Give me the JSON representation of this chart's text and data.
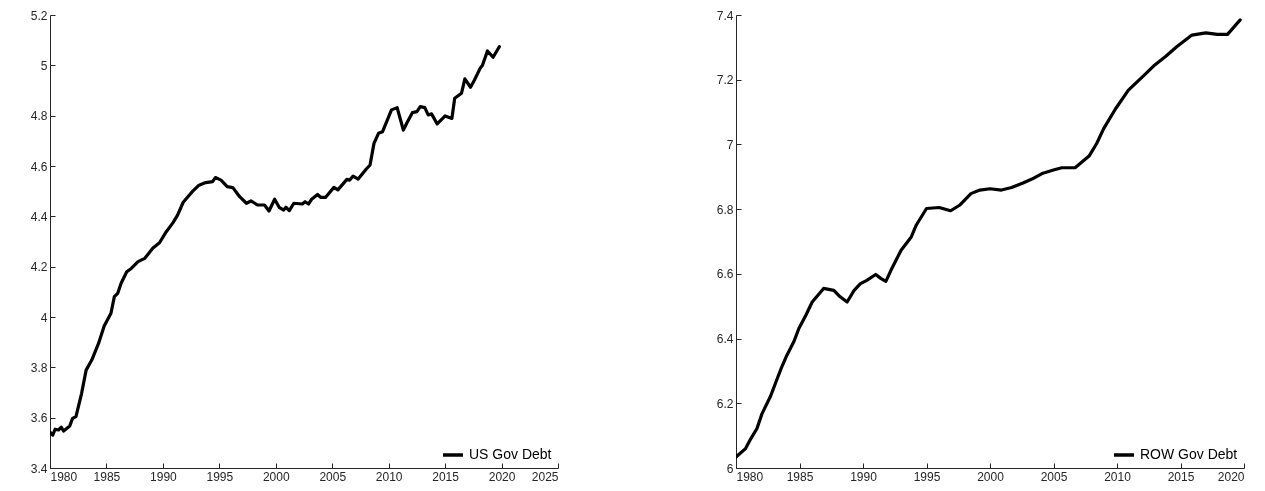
{
  "chart_data": [
    {
      "type": "line",
      "x": [
        1980.0,
        1980.25,
        1980.45,
        1980.75,
        1981.0,
        1981.2,
        1981.75,
        1982.0,
        1982.3,
        1982.8,
        1983.2,
        1983.7,
        1984.3,
        1984.8,
        1985.4,
        1985.7,
        1986.0,
        1986.3,
        1986.8,
        1987.2,
        1987.8,
        1988.4,
        1989.1,
        1989.7,
        1990.3,
        1990.9,
        1991.3,
        1991.8,
        1992.6,
        1993.2,
        1993.8,
        1994.4,
        1994.65,
        1995.15,
        1995.7,
        1996.2,
        1996.8,
        1997.4,
        1997.8,
        1998.4,
        1999.0,
        1999.4,
        1999.9,
        2000.3,
        2000.7,
        2000.9,
        2001.2,
        2001.6,
        2002.35,
        2002.6,
        2002.9,
        2003.2,
        2003.7,
        2004.0,
        2004.4,
        2005.15,
        2005.5,
        2006.3,
        2006.55,
        2006.85,
        2007.3,
        2008.0,
        2008.35,
        2008.7,
        2009.1,
        2009.45,
        2010.25,
        2010.75,
        2011.3,
        2011.6,
        2012.1,
        2012.5,
        2012.8,
        2013.2,
        2013.5,
        2013.8,
        2014.3,
        2015.0,
        2015.6,
        2015.85,
        2016.45,
        2016.75,
        2017.25,
        2017.6,
        2018.1,
        2018.3,
        2018.75,
        2019.25,
        2019.8
      ],
      "series": [
        {
          "name": "US Gov Debt",
          "color": "#000000",
          "values": [
            3.542,
            3.531,
            3.554,
            3.551,
            3.562,
            3.547,
            3.567,
            3.597,
            3.604,
            3.697,
            3.789,
            3.829,
            3.895,
            3.964,
            4.015,
            4.081,
            4.094,
            4.134,
            4.18,
            4.193,
            4.22,
            4.233,
            4.273,
            4.295,
            4.339,
            4.375,
            4.405,
            4.456,
            4.498,
            4.524,
            4.534,
            4.538,
            4.554,
            4.544,
            4.518,
            4.514,
            4.478,
            4.452,
            4.461,
            4.445,
            4.445,
            4.421,
            4.468,
            4.436,
            4.425,
            4.436,
            4.423,
            4.452,
            4.449,
            4.458,
            4.449,
            4.469,
            4.487,
            4.475,
            4.475,
            4.515,
            4.505,
            4.547,
            4.544,
            4.56,
            4.548,
            4.587,
            4.604,
            4.69,
            4.73,
            4.736,
            4.823,
            4.832,
            4.743,
            4.77,
            4.812,
            4.816,
            4.836,
            4.832,
            4.803,
            4.807,
            4.767,
            4.799,
            4.789,
            4.869,
            4.889,
            4.946,
            4.913,
            4.942,
            4.988,
            4.999,
            5.057,
            5.032,
            5.074
          ]
        }
      ],
      "xlim": [
        1980,
        2025
      ],
      "xticks": [
        1980,
        1985,
        1990,
        1995,
        2000,
        2005,
        2010,
        2015,
        2020,
        2025
      ],
      "ylim": [
        3.4,
        5.2
      ],
      "yticks": [
        3.4,
        3.6,
        3.8,
        4,
        4.2,
        4.4,
        4.6,
        4.8,
        5,
        5.2
      ],
      "legend": "bottom right"
    },
    {
      "type": "line",
      "x": [
        1980.0,
        1980.75,
        1981.1,
        1981.65,
        1982.05,
        1982.7,
        1983.1,
        1983.6,
        1984.0,
        1984.55,
        1984.95,
        1985.5,
        1986.0,
        1986.9,
        1987.7,
        1988.2,
        1988.75,
        1989.3,
        1989.8,
        1990.3,
        1991.0,
        1991.4,
        1991.8,
        1992.2,
        1993.0,
        1993.8,
        1994.2,
        1995.0,
        1996.0,
        1996.9,
        1997.6,
        1998.5,
        1999.2,
        2000.0,
        2000.9,
        2001.7,
        2002.6,
        2003.3,
        2004.1,
        2005.0,
        2005.65,
        2006.7,
        2007.8,
        2008.4,
        2008.95,
        2009.9,
        2010.9,
        2012.0,
        2012.9,
        2013.8,
        2014.7,
        2015.9,
        2017.0,
        2017.9,
        2018.7,
        2019.7
      ],
      "series": [
        {
          "name": "ROW Gov Debt",
          "color": "#000000",
          "values": [
            6.034,
            6.06,
            6.086,
            6.122,
            6.168,
            6.22,
            6.261,
            6.312,
            6.348,
            6.39,
            6.431,
            6.472,
            6.513,
            6.555,
            6.549,
            6.529,
            6.513,
            6.549,
            6.57,
            6.58,
            6.598,
            6.586,
            6.577,
            6.611,
            6.673,
            6.714,
            6.751,
            6.802,
            6.805,
            6.795,
            6.812,
            6.848,
            6.859,
            6.863,
            6.859,
            6.867,
            6.881,
            6.893,
            6.91,
            6.921,
            6.928,
            6.928,
            6.964,
            7.003,
            7.049,
            7.111,
            7.168,
            7.209,
            7.243,
            7.271,
            7.302,
            7.338,
            7.345,
            7.34,
            7.34,
            7.385
          ]
        }
      ],
      "xlim": [
        1980,
        2020
      ],
      "xticks": [
        1980,
        1985,
        1990,
        1995,
        2000,
        2005,
        2010,
        2015,
        2020
      ],
      "ylim": [
        6,
        7.4
      ],
      "yticks": [
        6,
        6.2,
        6.4,
        6.6,
        6.8,
        7,
        7.2,
        7.4
      ],
      "legend": "bottom right"
    }
  ]
}
